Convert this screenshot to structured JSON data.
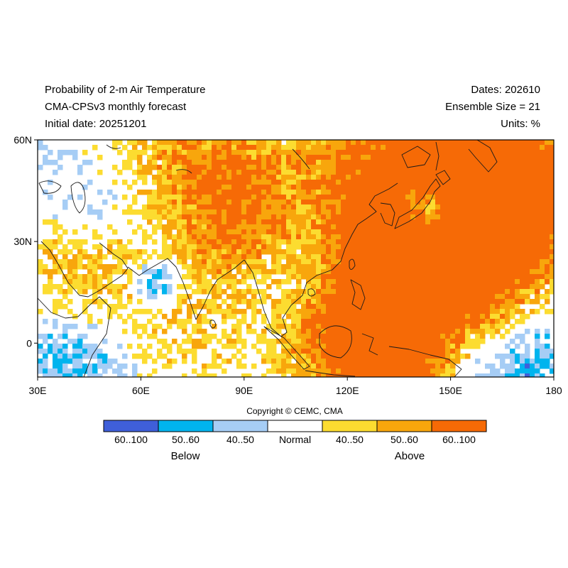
{
  "header": {
    "left": [
      "Probability of 2-m Air Temperature",
      "CMA-CPSv3 monthly forecast",
      "Initial date: 20251201"
    ],
    "right": [
      "Dates: 202610",
      "Ensemble Size = 21",
      "Units: %"
    ]
  },
  "map": {
    "lon_range": [
      30,
      180
    ],
    "lat_range": [
      -10,
      60
    ],
    "lat_ticks": [
      {
        "value": 60,
        "label": "60N"
      },
      {
        "value": 30,
        "label": "30N"
      },
      {
        "value": 0,
        "label": "0"
      }
    ],
    "lon_ticks": [
      {
        "value": 30,
        "label": "30E"
      },
      {
        "value": 60,
        "label": "60E"
      },
      {
        "value": 90,
        "label": "90E"
      },
      {
        "value": 120,
        "label": "120E"
      },
      {
        "value": 150,
        "label": "150E"
      },
      {
        "value": 180,
        "label": "180"
      }
    ]
  },
  "copyright": "Copyright © CEMC, CMA",
  "colorbar": {
    "bins": [
      {
        "label": "60..100",
        "color": "#3f5fd9"
      },
      {
        "label": "50..60",
        "color": "#00b4ee"
      },
      {
        "label": "40..50",
        "color": "#a6cdf5"
      },
      {
        "label": "Normal",
        "color": "#ffffff"
      },
      {
        "label": "40..50",
        "color": "#fcdc30"
      },
      {
        "label": "50..60",
        "color": "#f8a60c"
      },
      {
        "label": "60..100",
        "color": "#f66a06"
      }
    ],
    "group_labels": {
      "below": "Below",
      "above": "Above"
    }
  }
}
